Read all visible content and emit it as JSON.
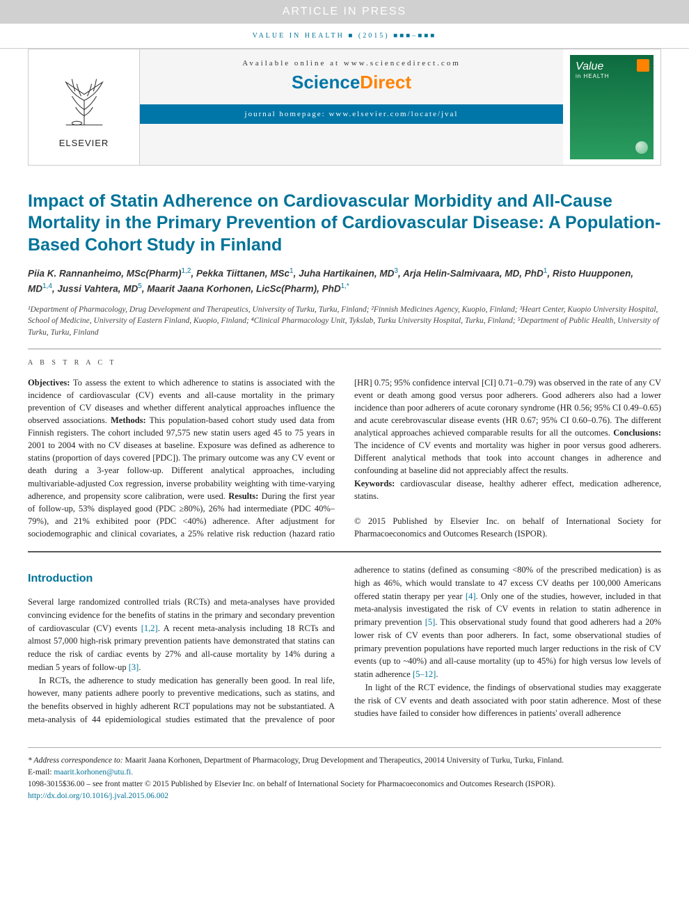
{
  "banner": {
    "article_in_press": "ARTICLE IN PRESS",
    "journal_ref": "VALUE IN HEALTH ■ (2015) ■■■–■■■",
    "available_line_prefix": "Available online at ",
    "available_url": "www.sciencedirect.com",
    "sd_a": "Science",
    "sd_b": "Direct",
    "homepage_prefix": "journal homepage: ",
    "homepage_url": "www.elsevier.com/locate/jval",
    "elsevier_label": "ELSEVIER",
    "cover_title": "Value",
    "cover_sub": "HEALTH"
  },
  "title": "Impact of Statin Adherence on Cardiovascular Morbidity and All-Cause Mortality in the Primary Prevention of Cardiovascular Disease: A Population-Based Cohort Study in Finland",
  "authors_html": "Piia K. Rannanheimo, MSc(Pharm)<sup>1,2</sup>, Pekka Tiittanen, MSc<sup>1</sup>, Juha Hartikainen, MD<sup>3</sup>, Arja Helin-Salmivaara, MD, PhD<sup>1</sup>, Risto Huupponen, MD<sup>1,4</sup>, Jussi Vahtera, MD<sup>5</sup>, Maarit Jaana Korhonen, LicSc(Pharm), PhD<sup>1,*</sup>",
  "affiliations": "¹Department of Pharmacology, Drug Development and Therapeutics, University of Turku, Turku, Finland; ²Finnish Medicines Agency, Kuopio, Finland; ³Heart Center, Kuopio University Hospital, School of Medicine, University of Eastern Finland, Kuopio, Finland; ⁴Clinical Pharmacology Unit, Tykslab, Turku University Hospital, Turku, Finland; ⁵Department of Public Health, University of Turku, Turku, Finland",
  "abstract": {
    "label": "A B S T R A C T",
    "objectives_label": "Objectives:",
    "objectives": " To assess the extent to which adherence to statins is associated with the incidence of cardiovascular (CV) events and all-cause mortality in the primary prevention of CV diseases and whether different analytical approaches influence the observed associations. ",
    "methods_label": "Methods:",
    "methods": " This population-based cohort study used data from Finnish registers. The cohort included 97,575 new statin users aged 45 to 75 years in 2001 to 2004 with no CV diseases at baseline. Exposure was defined as adherence to statins (proportion of days covered [PDC]). The primary outcome was any CV event or death during a 3-year follow-up. Different analytical approaches, including multivariable-adjusted Cox regression, inverse probability weighting with time-varying adherence, and propensity score calibration, were used. ",
    "results_label": "Results:",
    "results": " During the first year of follow-up, 53% displayed good (PDC ≥80%), 26% had intermediate (PDC 40%–79%), and 21% exhibited poor (PDC <40%) adherence. After adjustment for sociodemographic and clinical covariates, a 25% relative risk reduction (hazard ratio [HR] 0.75; 95% confidence interval [CI] 0.71–0.79) was observed in the rate of any CV event or death among good versus poor adherers. Good adherers also had a lower incidence than poor adherers of acute coronary syndrome (HR 0.56; 95% CI 0.49–0.65) and acute cerebrovascular disease events (HR 0.67; 95% CI 0.60–0.76). The different analytical approaches achieved comparable results for all the outcomes. ",
    "conclusions_label": "Conclusions:",
    "conclusions": " The incidence of CV events and mortality was higher in poor versus good adherers. Different analytical methods that took into account changes in adherence and confounding at baseline did not appreciably affect the results.",
    "keywords_label": "Keywords:",
    "keywords": " cardiovascular disease, healthy adherer effect, medication adherence, statins.",
    "copyright": "© 2015 Published by Elsevier Inc. on behalf of International Society for Pharmacoeconomics and Outcomes Research (ISPOR)."
  },
  "intro": {
    "heading": "Introduction",
    "p1a": "Several large randomized controlled trials (RCTs) and meta-analyses have provided convincing evidence for the benefits of statins in the primary and secondary prevention of cardiovascular (CV) events ",
    "p1_ref1": "[1,2]",
    "p1b": ". A recent meta-analysis including 18 RCTs and almost 57,000 high-risk primary prevention patients have demonstrated that statins can reduce the risk of cardiac events by 27% and all-cause mortality by 14% during a median 5 years of follow-up ",
    "p1_ref2": "[3]",
    "p1c": ".",
    "p2a": "In RCTs, the adherence to study medication has generally been good. In real life, however, many patients adhere poorly to preventive medications, such as statins, and the benefits observed in highly adherent RCT populations may not be substantiated. A meta-analysis of 44 epidemiological studies estimated that the prevalence of poor adherence to statins (defined as consuming <80% of the prescribed medication) is as high as 46%, which would translate to 47 excess CV deaths per 100,000 Americans offered statin therapy per year ",
    "p2_ref1": "[4]",
    "p2b": ". Only one of the studies, however, included in that meta-analysis investigated the risk of CV events in relation to statin adherence in primary prevention ",
    "p2_ref2": "[5]",
    "p2c": ". This observational study found that good adherers had a 20% lower risk of CV events than poor adherers. In fact, some observational studies of primary prevention populations have reported much larger reductions in the risk of CV events (up to ~40%) and all-cause mortality (up to 45%) for high versus low levels of statin adherence ",
    "p2_ref3": "[5–12]",
    "p2d": ".",
    "p3": "In light of the RCT evidence, the findings of observational studies may exaggerate the risk of CV events and death associated with poor statin adherence. Most of these studies have failed to consider how differences in patients' overall adherence"
  },
  "footer": {
    "corr_label": "* Address correspondence to:",
    "corr_text": " Maarit Jaana Korhonen, Department of Pharmacology, Drug Development and Therapeutics, 20014 University of Turku, Turku, Finland.",
    "email_label": "E-mail: ",
    "email": "maarit.korhonen@utu.fi.",
    "issn_line": "1098-3015$36.00 – see front matter © 2015 Published by Elsevier Inc. on behalf of International Society for Pharmacoeconomics and Outcomes Research (ISPOR).",
    "doi": "http://dx.doi.org/10.1016/j.jval.2015.06.002"
  },
  "colors": {
    "brand_teal": "#007398",
    "sd_blue": "#0076a8",
    "sd_orange": "#ff8200"
  }
}
